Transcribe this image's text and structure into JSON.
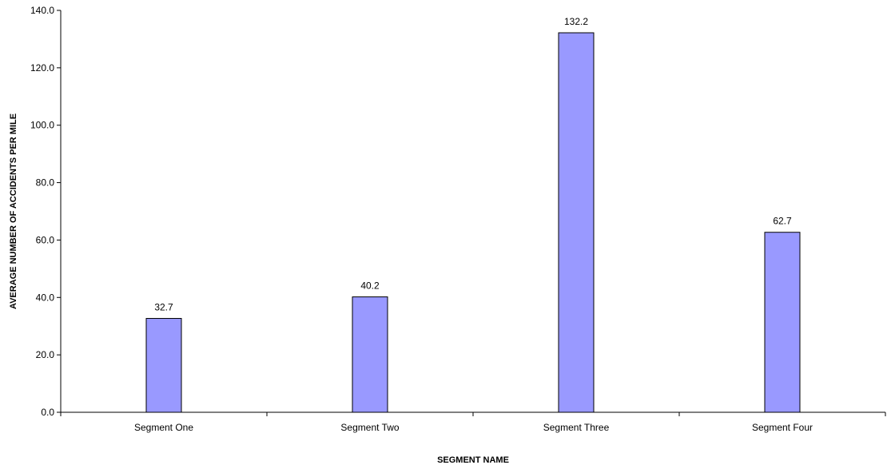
{
  "chart_data": {
    "type": "bar",
    "title": "",
    "xlabel": "SEGMENT NAME",
    "ylabel": "AVERAGE NUMBER OF ACCIDENTS PER MILE",
    "categories": [
      "Segment One",
      "Segment Two",
      "Segment Three",
      "Segment Four"
    ],
    "values": [
      32.7,
      40.2,
      132.2,
      62.7
    ],
    "data_labels": [
      "32.7",
      "40.2",
      "132.2",
      "62.7"
    ],
    "ylim": [
      0,
      140
    ],
    "yticks": [
      0,
      20,
      40,
      60,
      80,
      100,
      120,
      140
    ],
    "ytick_labels": [
      "0.0",
      "20.0",
      "40.0",
      "60.0",
      "80.0",
      "100.0",
      "120.0",
      "140.0"
    ],
    "grid": false,
    "legend": "none",
    "colors": {
      "bar_fill": "#9999ff",
      "bar_stroke": "#000000",
      "axis": "#000000"
    }
  }
}
